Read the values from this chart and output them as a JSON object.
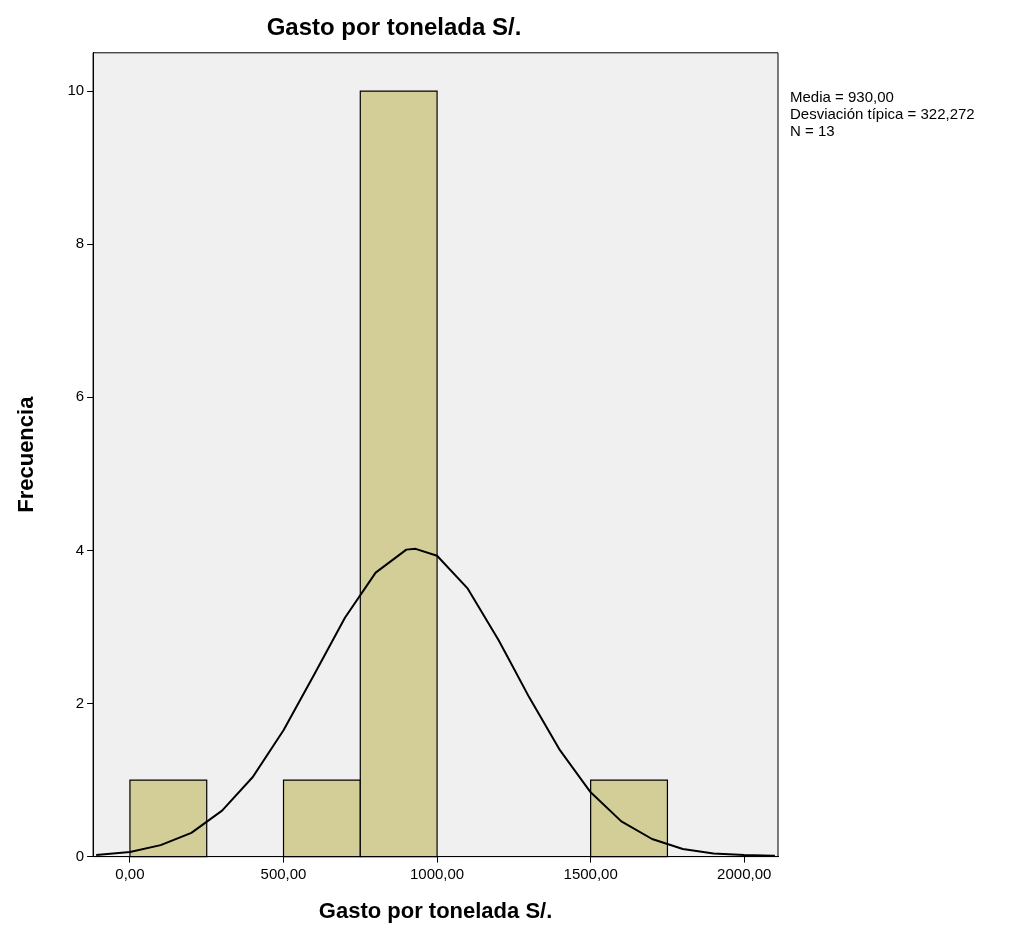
{
  "chart_data": {
    "type": "histogram",
    "title": "Gasto por tonelada S/.",
    "xlabel": "Gasto por tonelada S/.",
    "ylabel": "Frecuencia",
    "bins": [
      0,
      250,
      500,
      750,
      1000,
      1250,
      1500,
      1750
    ],
    "values": [
      1,
      0,
      1,
      10,
      0,
      0,
      1
    ],
    "color": "#d3ce97",
    "series": [
      {
        "type": "line",
        "color": "#000000",
        "x": [
          -110,
          0,
          100,
          200,
          300,
          400,
          500,
          600,
          700,
          800,
          900,
          930,
          1000,
          1100,
          1200,
          1300,
          1400,
          1500,
          1600,
          1700,
          1800,
          1900,
          2000,
          2100
        ],
        "values": [
          0.02,
          0.06,
          0.15,
          0.31,
          0.6,
          1.04,
          1.65,
          2.38,
          3.12,
          3.71,
          4.01,
          4.02,
          3.93,
          3.5,
          2.83,
          2.08,
          1.39,
          0.84,
          0.46,
          0.23,
          0.1,
          0.04,
          0.02,
          0.01
        ]
      }
    ],
    "xlim": [
      -120,
      2110
    ],
    "ylim": [
      0,
      10.5
    ],
    "xticks": [
      {
        "value": 0,
        "label": "0,00"
      },
      {
        "value": 500,
        "label": "500,00"
      },
      {
        "value": 1000,
        "label": "1000,00"
      },
      {
        "value": 1500,
        "label": "1500,00"
      },
      {
        "value": 2000,
        "label": "2000,00"
      }
    ],
    "yticks": [
      0,
      2,
      4,
      6,
      8,
      10
    ],
    "grid": false,
    "legend": false,
    "marker": "none",
    "line_style": "solid",
    "annotations": [
      "Media = 930,00",
      "Desviación típica = 322,272",
      "N = 13"
    ]
  }
}
